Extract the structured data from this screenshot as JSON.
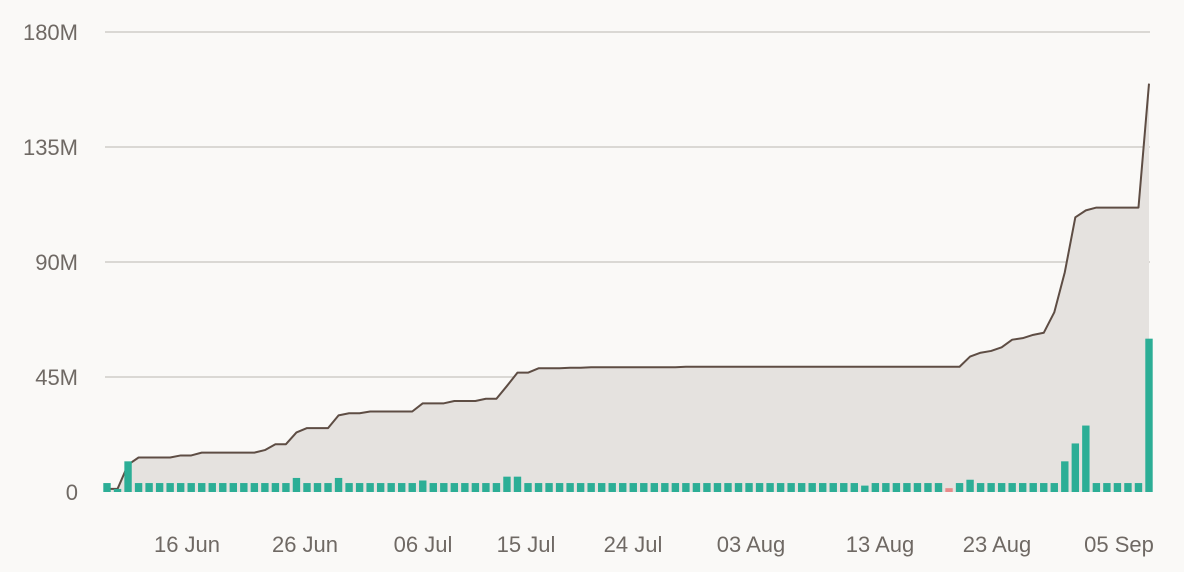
{
  "chart_data": {
    "type": "area",
    "title": "",
    "xlabel": "",
    "ylabel": "",
    "ylim": [
      0,
      180000000
    ],
    "grid": true,
    "legend": "none",
    "y_ticks": [
      {
        "value": 0,
        "label": "0"
      },
      {
        "value": 45000000,
        "label": "45M"
      },
      {
        "value": 90000000,
        "label": "90M"
      },
      {
        "value": 135000000,
        "label": "135M"
      },
      {
        "value": 180000000,
        "label": "180M"
      }
    ],
    "x_ticks": [
      "16 Jun",
      "26 Jun",
      "06 Jul",
      "15 Jul",
      "24 Jul",
      "03 Aug",
      "13 Aug",
      "23 Aug",
      "05 Sep"
    ],
    "colors": {
      "cumulative_line": "#5e4d44",
      "cumulative_fill": "#e5e2df",
      "positive_bar": "#2cae96",
      "negative_bar": "#e88a8a",
      "grid": "#d0cdc9",
      "text": "#6f6964"
    },
    "series": [
      {
        "role": "cumulative",
        "values": [
          1.2,
          1.2,
          10.7,
          13.5,
          13.5,
          13.5,
          13.5,
          14.3,
          14.3,
          15.4,
          15.4,
          15.4,
          15.4,
          15.4,
          15.4,
          16.4,
          18.7,
          18.7,
          23.3,
          25.0,
          25.0,
          25.0,
          30.0,
          30.8,
          30.8,
          31.5,
          31.5,
          31.5,
          31.5,
          31.5,
          34.7,
          34.7,
          34.7,
          35.6,
          35.6,
          35.6,
          36.5,
          36.5,
          41.5,
          46.7,
          46.7,
          48.4,
          48.4,
          48.4,
          48.6,
          48.6,
          48.8,
          48.8,
          48.8,
          48.8,
          48.8,
          48.8,
          48.8,
          48.8,
          48.8,
          49.0,
          49.0,
          49.0,
          49.0,
          49.0,
          49.0,
          49.0,
          49.0,
          49.0,
          49.0,
          49.0,
          49.0,
          49.0,
          49.0,
          49.0,
          49.0,
          49.0,
          49.0,
          49.0,
          49.0,
          49.0,
          49.0,
          49.0,
          49.0,
          49.0,
          49.0,
          49.0,
          53.0,
          54.5,
          55.2,
          56.6,
          59.6,
          60.2,
          61.5,
          62.3,
          70.3,
          86.0,
          107.5,
          110.2,
          111.3,
          111.3,
          111.3,
          111.3,
          111.3,
          159.8
        ]
      },
      {
        "role": "daily",
        "values": [
          3.5,
          1.2,
          12.0,
          3.5,
          3.5,
          3.5,
          3.5,
          3.5,
          3.5,
          3.5,
          3.5,
          3.5,
          3.5,
          3.5,
          3.5,
          3.5,
          3.5,
          3.5,
          5.5,
          3.5,
          3.5,
          3.5,
          5.5,
          3.5,
          3.5,
          3.5,
          3.5,
          3.5,
          3.5,
          3.5,
          4.5,
          3.5,
          3.5,
          3.5,
          3.5,
          3.5,
          3.5,
          3.5,
          6.0,
          6.0,
          3.5,
          3.5,
          3.5,
          3.5,
          3.5,
          3.5,
          3.5,
          3.5,
          3.5,
          3.5,
          3.5,
          3.5,
          3.5,
          3.5,
          3.5,
          3.5,
          3.5,
          3.5,
          3.5,
          3.5,
          3.5,
          3.5,
          3.5,
          3.5,
          3.5,
          3.5,
          3.5,
          3.5,
          3.5,
          3.5,
          3.5,
          3.5,
          2.5,
          3.5,
          3.5,
          3.5,
          3.5,
          3.5,
          3.5,
          3.5,
          -1.5,
          3.5,
          4.8,
          3.5,
          3.5,
          3.5,
          3.5,
          3.5,
          3.5,
          3.5,
          3.5,
          12.0,
          19.0,
          26.0,
          3.5,
          3.5,
          3.5,
          3.5,
          3.5,
          60.0
        ]
      }
    ]
  }
}
